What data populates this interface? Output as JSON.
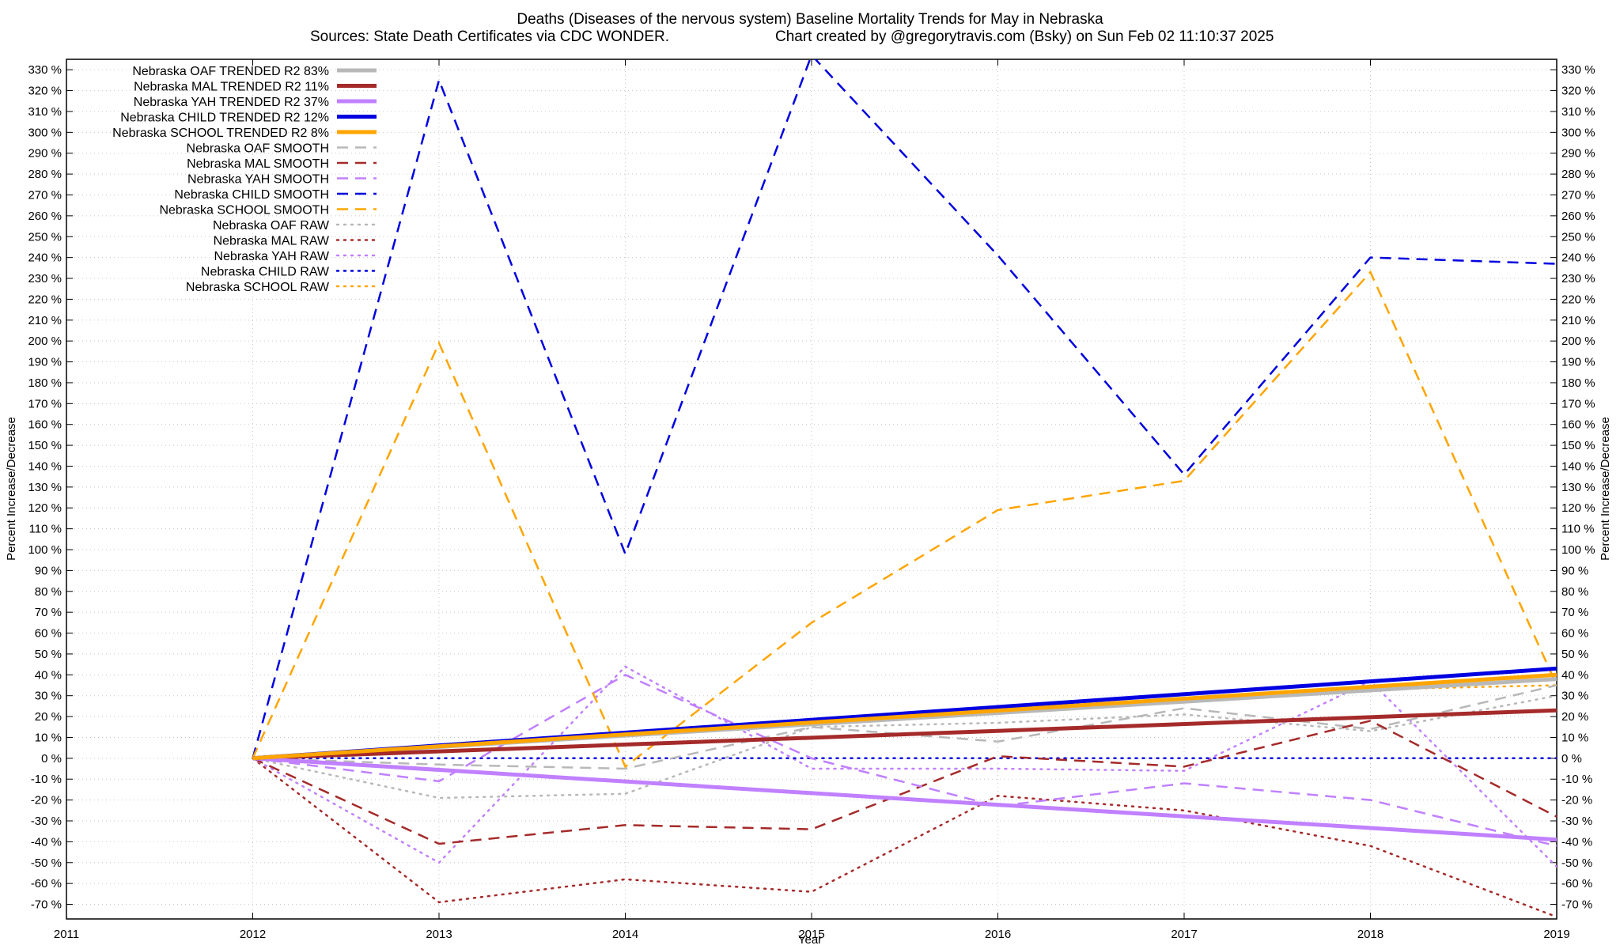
{
  "chart_data": {
    "type": "line",
    "title": "Deaths (Diseases of the nervous system)  Baseline Mortality Trends for May in Nebraska",
    "subtitle_left": "Sources: State Death Certificates via CDC WONDER.",
    "subtitle_right": "Chart created by @gregorytravis.com (Bsky) on Sun Feb 02 11:10:37 2025",
    "xlabel": "Year",
    "ylabel_left": "Percent Increase/Decrease",
    "ylabel_right": "Percent Increase/Decrease",
    "xlim": [
      2011,
      2019
    ],
    "ylim": [
      -77,
      335
    ],
    "x_ticks": [
      "2011",
      "2012",
      "2013",
      "2014",
      "2015",
      "2016",
      "2017",
      "2018",
      "2019"
    ],
    "y_ticks": [
      "-70 %",
      "-60 %",
      "-50 %",
      "-40 %",
      "-30 %",
      "-20 %",
      "-10 %",
      "0 %",
      "10 %",
      "20 %",
      "30 %",
      "40 %",
      "50 %",
      "60 %",
      "70 %",
      "80 %",
      "90 %",
      "100 %",
      "110 %",
      "120 %",
      "130 %",
      "140 %",
      "150 %",
      "160 %",
      "170 %",
      "180 %",
      "190 %",
      "200 %",
      "210 %",
      "220 %",
      "230 %",
      "240 %",
      "250 %",
      "260 %",
      "270 %",
      "280 %",
      "290 %",
      "300 %",
      "310 %",
      "320 %",
      "330 %"
    ],
    "grid": true,
    "legend_position": "top-left",
    "x": [
      2012,
      2013,
      2014,
      2015,
      2016,
      2017,
      2018,
      2019
    ],
    "series": [
      {
        "name": "Nebraska OAF TRENDED R2  83%",
        "style": "solid",
        "color": "#b8b8b8",
        "points": [
          [
            2012,
            0
          ],
          [
            2019,
            38
          ]
        ]
      },
      {
        "name": "Nebraska MAL TRENDED R2  11%",
        "style": "solid",
        "color": "#a52a2a",
        "points": [
          [
            2012,
            0
          ],
          [
            2019,
            23
          ]
        ]
      },
      {
        "name": "Nebraska YAH TRENDED R2  37%",
        "style": "solid",
        "color": "#c080ff",
        "points": [
          [
            2012,
            0
          ],
          [
            2019,
            -39
          ]
        ]
      },
      {
        "name": "Nebraska CHILD TRENDED R2  12%",
        "style": "solid",
        "color": "#0000e0",
        "points": [
          [
            2012,
            0
          ],
          [
            2019,
            43
          ]
        ]
      },
      {
        "name": "Nebraska SCHOOL TRENDED R2  8%",
        "style": "solid",
        "color": "#ffa500",
        "points": [
          [
            2012,
            0
          ],
          [
            2019,
            40
          ]
        ]
      },
      {
        "name": "Nebraska OAF SMOOTH",
        "style": "dashed",
        "color": "#b8b8b8",
        "values": [
          0,
          -3,
          -5,
          15,
          8,
          24,
          14,
          35
        ]
      },
      {
        "name": "Nebraska MAL SMOOTH",
        "style": "dashed",
        "color": "#a52a2a",
        "values": [
          0,
          -41,
          -32,
          -34,
          1,
          -4,
          18,
          -28
        ]
      },
      {
        "name": "Nebraska YAH SMOOTH",
        "style": "dashed",
        "color": "#c080ff",
        "values": [
          0,
          -11,
          40,
          0,
          -23,
          -12,
          -20,
          -42
        ]
      },
      {
        "name": "Nebraska CHILD SMOOTH",
        "style": "dashed",
        "color": "#0000e0",
        "values": [
          0,
          325,
          98,
          337,
          241,
          136,
          240,
          237
        ]
      },
      {
        "name": "Nebraska SCHOOL SMOOTH",
        "style": "dashed",
        "color": "#ffa500",
        "values": [
          0,
          199,
          -4,
          65,
          119,
          133,
          233,
          35
        ]
      },
      {
        "name": "Nebraska OAF RAW",
        "style": "dotted",
        "color": "#b8b8b8",
        "values": [
          0,
          -19,
          -17,
          15,
          17,
          21,
          13,
          30
        ]
      },
      {
        "name": "Nebraska MAL RAW",
        "style": "dotted",
        "color": "#a52a2a",
        "values": [
          0,
          -69,
          -58,
          -64,
          -18,
          -25,
          -42,
          -76
        ]
      },
      {
        "name": "Nebraska YAH RAW",
        "style": "dotted",
        "color": "#c080ff",
        "values": [
          0,
          -50,
          44,
          -5,
          -5,
          -6,
          37,
          -52
        ]
      },
      {
        "name": "Nebraska CHILD RAW",
        "style": "dotted",
        "color": "#0000e0",
        "values": [
          0,
          0,
          0,
          0,
          0,
          0,
          0,
          0
        ]
      },
      {
        "name": "Nebraska SCHOOL RAW",
        "style": "dotted",
        "color": "#ffa500",
        "values": [
          0,
          5,
          12,
          18,
          24,
          28,
          33,
          35
        ]
      }
    ]
  }
}
